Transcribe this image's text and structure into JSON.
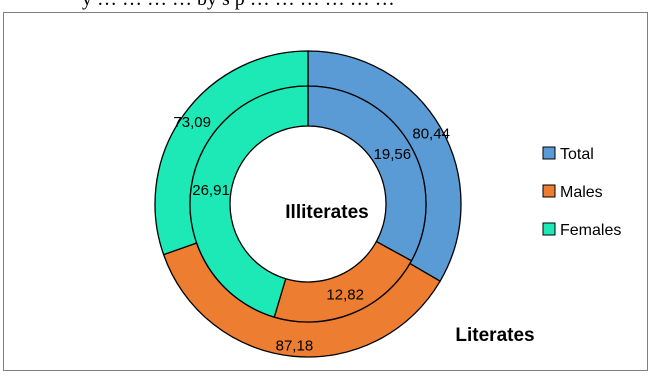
{
  "caption_fragment": "y … … … … by s p … … … … … …",
  "chart_data": {
    "type": "pie",
    "variant": "double-doughnut",
    "center_label": "Illiterates",
    "outer_label": "Literates",
    "categories": [
      "Total",
      "Males",
      "Females"
    ],
    "series": [
      {
        "ring": "outer",
        "values": [
          80.44,
          87.18,
          73.09
        ],
        "value_labels": [
          "80,44",
          "87,18",
          "73,09"
        ]
      },
      {
        "ring": "inner",
        "values": [
          19.56,
          12.82,
          26.91
        ],
        "value_labels": [
          "19,56",
          "12,82",
          "26,91"
        ]
      }
    ],
    "legend": {
      "position": "right",
      "entries": [
        "Total",
        "Males",
        "Females"
      ]
    },
    "colors": {
      "Total": "#5b9bd5",
      "Males": "#ed7d31",
      "Females": "#1de9b6"
    }
  }
}
